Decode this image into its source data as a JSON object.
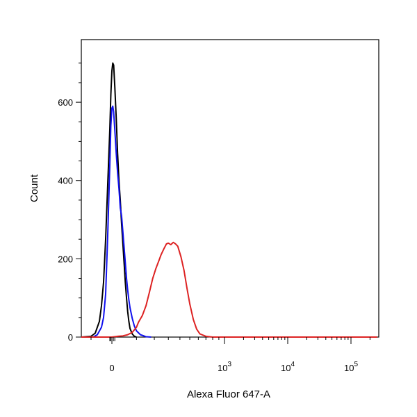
{
  "chart_data": {
    "type": "line",
    "title": "",
    "xlabel": "Alexa Fluor 647-A",
    "ylabel": "Count",
    "x_scale": "biexponential",
    "x_ticks": [
      {
        "value": 0,
        "base": "0",
        "exp": ""
      },
      {
        "value": 1000,
        "base": "10",
        "exp": "3"
      },
      {
        "value": 10000,
        "base": "10",
        "exp": "4"
      },
      {
        "value": 100000,
        "base": "10",
        "exp": "5"
      }
    ],
    "y_ticks": [
      {
        "value": 0,
        "label": "0"
      },
      {
        "value": 200,
        "label": "200"
      },
      {
        "value": 400,
        "label": "400"
      },
      {
        "value": 600,
        "label": "600"
      }
    ],
    "ylim": [
      0,
      760
    ],
    "grid": false,
    "series": [
      {
        "color": "#000000",
        "points": [
          [
            -150,
            0
          ],
          [
            -100,
            2
          ],
          [
            -80,
            10
          ],
          [
            -60,
            40
          ],
          [
            -50,
            80
          ],
          [
            -40,
            140
          ],
          [
            -30,
            250
          ],
          [
            -20,
            390
          ],
          [
            -10,
            530
          ],
          [
            -5,
            620
          ],
          [
            0,
            680
          ],
          [
            3,
            700
          ],
          [
            6,
            695
          ],
          [
            10,
            640
          ],
          [
            15,
            560
          ],
          [
            20,
            470
          ],
          [
            25,
            400
          ],
          [
            30,
            350
          ],
          [
            35,
            290
          ],
          [
            40,
            240
          ],
          [
            45,
            190
          ],
          [
            50,
            140
          ],
          [
            55,
            100
          ],
          [
            60,
            65
          ],
          [
            65,
            40
          ],
          [
            70,
            22
          ],
          [
            80,
            8
          ],
          [
            90,
            2
          ],
          [
            100,
            0
          ]
        ]
      },
      {
        "color": "#1010ee",
        "points": [
          [
            -150,
            0
          ],
          [
            -90,
            0
          ],
          [
            -70,
            6
          ],
          [
            -50,
            25
          ],
          [
            -40,
            50
          ],
          [
            -30,
            110
          ],
          [
            -20,
            260
          ],
          [
            -10,
            440
          ],
          [
            -5,
            540
          ],
          [
            0,
            585
          ],
          [
            3,
            590
          ],
          [
            6,
            575
          ],
          [
            10,
            530
          ],
          [
            15,
            470
          ],
          [
            20,
            420
          ],
          [
            25,
            380
          ],
          [
            30,
            330
          ],
          [
            35,
            310
          ],
          [
            40,
            270
          ],
          [
            45,
            230
          ],
          [
            50,
            190
          ],
          [
            55,
            150
          ],
          [
            60,
            120
          ],
          [
            65,
            95
          ],
          [
            70,
            75
          ],
          [
            80,
            48
          ],
          [
            90,
            28
          ],
          [
            100,
            16
          ],
          [
            120,
            6
          ],
          [
            150,
            1
          ],
          [
            180,
            0
          ]
        ]
      },
      {
        "color": "#dd2222",
        "points": [
          [
            -150,
            0
          ],
          [
            0,
            0
          ],
          [
            20,
            2
          ],
          [
            40,
            3
          ],
          [
            60,
            6
          ],
          [
            80,
            12
          ],
          [
            100,
            25
          ],
          [
            110,
            38
          ],
          [
            130,
            55
          ],
          [
            150,
            80
          ],
          [
            170,
            115
          ],
          [
            190,
            150
          ],
          [
            210,
            175
          ],
          [
            230,
            195
          ],
          [
            245,
            210
          ],
          [
            265,
            225
          ],
          [
            285,
            238
          ],
          [
            300,
            240
          ],
          [
            320,
            236
          ],
          [
            340,
            242
          ],
          [
            360,
            238
          ],
          [
            380,
            232
          ],
          [
            410,
            205
          ],
          [
            440,
            170
          ],
          [
            470,
            125
          ],
          [
            500,
            85
          ],
          [
            540,
            45
          ],
          [
            580,
            20
          ],
          [
            620,
            8
          ],
          [
            700,
            2
          ],
          [
            800,
            0
          ],
          [
            1000,
            0
          ],
          [
            10000,
            0
          ],
          [
            100000,
            0
          ],
          [
            260000,
            0
          ]
        ]
      }
    ]
  }
}
